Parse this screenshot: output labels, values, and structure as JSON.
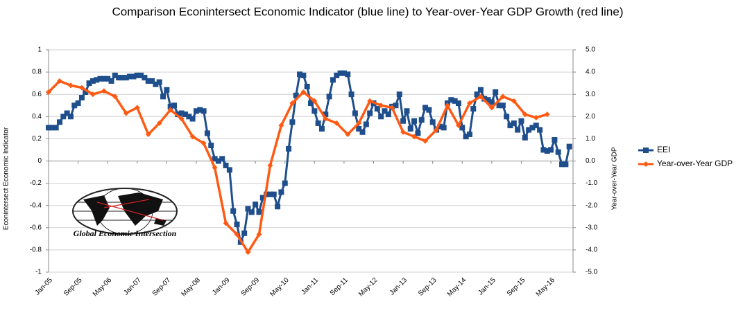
{
  "chart_data": {
    "type": "line",
    "title": "Comparison Econintersect Economic Indicator (blue line) to Year-over-Year GDP Growth (red line)",
    "y_label": "Econintersect Economic Indicator",
    "y2_label": "Year-over-Year GDP",
    "logo_text": "Global Economic Intersection",
    "legend": "right",
    "grid": true,
    "xlim": [
      0,
      142
    ],
    "xticks": [
      {
        "value": 0,
        "label": "Jan-05"
      },
      {
        "value": 8,
        "label": "Sep-05"
      },
      {
        "value": 16,
        "label": "May-06"
      },
      {
        "value": 24,
        "label": "Jan-07"
      },
      {
        "value": 32,
        "label": "Sep-07"
      },
      {
        "value": 40,
        "label": "May-08"
      },
      {
        "value": 48,
        "label": "Jan-09"
      },
      {
        "value": 56,
        "label": "Sep-09"
      },
      {
        "value": 64,
        "label": "May-10"
      },
      {
        "value": 72,
        "label": "Jan-11"
      },
      {
        "value": 80,
        "label": "Sep-11"
      },
      {
        "value": 88,
        "label": "May-12"
      },
      {
        "value": 96,
        "label": "Jan-13"
      },
      {
        "value": 104,
        "label": "Sep-13"
      },
      {
        "value": 112,
        "label": "May-14"
      },
      {
        "value": 120,
        "label": "Jan-15"
      },
      {
        "value": 128,
        "label": "Sep-15"
      },
      {
        "value": 136,
        "label": "May-16"
      }
    ],
    "ylim": [
      -1,
      1
    ],
    "yticks": [
      -1,
      -0.8,
      -0.6,
      -0.4,
      -0.2,
      0,
      0.2,
      0.4,
      0.6,
      0.8,
      1
    ],
    "y2lim": [
      -5,
      5
    ],
    "y2ticks": [
      {
        "value": -5,
        "label": "-5.0"
      },
      {
        "value": -4,
        "label": "-4.0"
      },
      {
        "value": -3,
        "label": "-3.0"
      },
      {
        "value": -2,
        "label": "-2.0"
      },
      {
        "value": -1,
        "label": "-1.0"
      },
      {
        "value": 0,
        "label": "0.0"
      },
      {
        "value": 1,
        "label": "1.0"
      },
      {
        "value": 2,
        "label": "2.0"
      },
      {
        "value": 3,
        "label": "3.0"
      },
      {
        "value": 4,
        "label": "4.0"
      },
      {
        "value": 5,
        "label": "5.0"
      }
    ],
    "series": [
      {
        "name": "EEI",
        "color": "#1f4e8c",
        "marker": "square",
        "x": [
          0,
          1,
          2,
          3,
          4,
          5,
          6,
          7,
          8,
          9,
          10,
          11,
          12,
          13,
          14,
          15,
          16,
          17,
          18,
          19,
          20,
          21,
          22,
          23,
          24,
          25,
          26,
          27,
          28,
          29,
          30,
          31,
          32,
          33,
          34,
          35,
          36,
          37,
          38,
          39,
          40,
          41,
          42,
          43,
          44,
          45,
          46,
          47,
          48,
          49,
          50,
          51,
          52,
          53,
          54,
          55,
          56,
          57,
          58,
          59,
          60,
          61,
          62,
          63,
          64,
          65,
          66,
          67,
          68,
          69,
          70,
          71,
          72,
          73,
          74,
          75,
          76,
          77,
          78,
          79,
          80,
          81,
          82,
          83,
          84,
          85,
          86,
          87,
          88,
          89,
          90,
          91,
          92,
          93,
          94,
          95,
          96,
          97,
          98,
          99,
          100,
          101,
          102,
          103,
          104,
          105,
          106,
          107,
          108,
          109,
          110,
          111,
          112,
          113,
          114,
          115,
          116,
          117,
          118,
          119,
          120,
          121,
          122,
          123,
          124,
          125,
          126,
          127,
          128,
          129,
          130,
          131,
          132,
          133,
          134,
          135,
          136,
          137,
          138,
          139,
          140,
          141
        ],
        "values": [
          0.3,
          0.3,
          0.3,
          0.35,
          0.4,
          0.43,
          0.4,
          0.5,
          0.52,
          0.57,
          0.62,
          0.7,
          0.72,
          0.73,
          0.74,
          0.74,
          0.74,
          0.72,
          0.77,
          0.75,
          0.75,
          0.75,
          0.76,
          0.76,
          0.77,
          0.77,
          0.75,
          0.72,
          0.72,
          0.69,
          0.71,
          0.58,
          0.64,
          0.49,
          0.5,
          0.42,
          0.43,
          0.42,
          0.4,
          0.38,
          0.45,
          0.46,
          0.45,
          0.25,
          0.14,
          0.02,
          0.0,
          0.02,
          -0.04,
          -0.08,
          -0.45,
          -0.57,
          -0.73,
          -0.65,
          -0.43,
          -0.46,
          -0.39,
          -0.46,
          -0.33,
          -0.3,
          -0.3,
          -0.3,
          -0.41,
          -0.28,
          -0.2,
          0.11,
          0.35,
          0.59,
          0.78,
          0.77,
          0.67,
          0.52,
          0.45,
          0.34,
          0.29,
          0.42,
          0.58,
          0.73,
          0.77,
          0.79,
          0.79,
          0.78,
          0.6,
          0.43,
          0.29,
          0.26,
          0.33,
          0.43,
          0.52,
          0.47,
          0.4,
          0.45,
          0.42,
          0.49,
          0.5,
          0.6,
          0.36,
          0.45,
          0.29,
          0.36,
          0.25,
          0.37,
          0.48,
          0.46,
          0.35,
          0.28,
          0.31,
          0.3,
          0.52,
          0.55,
          0.54,
          0.52,
          0.3,
          0.22,
          0.24,
          0.47,
          0.6,
          0.64,
          0.56,
          0.55,
          0.53,
          0.62,
          0.5,
          0.5,
          0.4,
          0.32,
          0.34,
          0.28,
          0.36,
          0.21,
          0.28,
          0.3,
          0.32,
          0.28,
          0.1,
          0.09,
          0.1,
          0.19,
          0.08,
          -0.03,
          -0.03,
          0.13
        ]
      },
      {
        "name": "Year-over-Year GDP",
        "color": "#ff5a14",
        "marker": "diamond",
        "axis": "y2",
        "x": [
          0,
          3,
          6,
          9,
          12,
          15,
          18,
          21,
          24,
          27,
          30,
          33,
          36,
          39,
          42,
          45,
          48,
          51,
          54,
          57,
          60,
          63,
          66,
          69,
          72,
          75,
          78,
          81,
          84,
          87,
          90,
          93,
          96,
          99,
          102,
          105,
          108,
          111,
          114,
          117,
          120,
          123,
          126,
          129,
          132,
          135
        ],
        "values": [
          3.1,
          3.6,
          3.4,
          3.3,
          3.0,
          3.15,
          2.9,
          2.15,
          2.4,
          1.2,
          1.7,
          2.3,
          1.9,
          1.1,
          0.8,
          -0.3,
          -2.8,
          -3.3,
          -4.1,
          -3.3,
          -0.2,
          1.6,
          2.6,
          3.1,
          2.7,
          1.9,
          1.7,
          1.2,
          1.7,
          2.7,
          2.5,
          2.4,
          1.3,
          1.1,
          0.9,
          1.4,
          2.5,
          1.6,
          2.6,
          2.9,
          2.4,
          2.9,
          2.7,
          2.1,
          1.95,
          2.1
        ]
      }
    ]
  }
}
